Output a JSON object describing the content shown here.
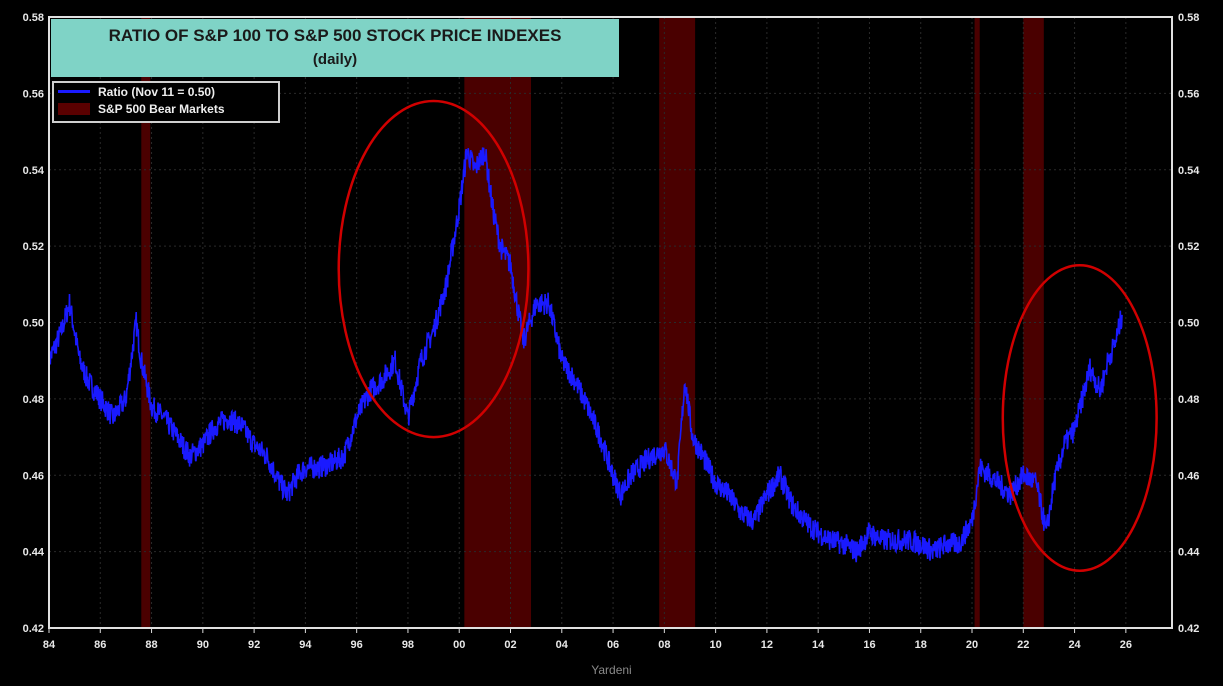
{
  "chart_data": {
    "type": "line",
    "title": "RATIO OF S&P 100 TO S&P 500 STOCK PRICE INDEXES",
    "subtitle": "(daily)",
    "legend": [
      {
        "label": "Ratio (Nov 11 = 0.50)",
        "color": "#1a1aff"
      },
      {
        "label": "S&P 500 Bear Markets",
        "color": "#5a0000"
      }
    ],
    "legend_placement": "top-left",
    "xlim": [
      1984,
      2027.8
    ],
    "ylim": [
      0.42,
      0.58
    ],
    "x_ticks": [
      "84",
      "86",
      "88",
      "90",
      "92",
      "94",
      "96",
      "98",
      "00",
      "02",
      "04",
      "06",
      "08",
      "10",
      "12",
      "14",
      "16",
      "18",
      "20",
      "22",
      "24",
      "26"
    ],
    "y_ticks": [
      "0.42",
      "0.44",
      "0.46",
      "0.48",
      "0.50",
      "0.52",
      "0.54",
      "0.56",
      "0.58"
    ],
    "grid": true,
    "bear_markets": [
      [
        1987.6,
        1987.95
      ],
      [
        2000.2,
        2002.8
      ],
      [
        2007.8,
        2009.2
      ],
      [
        2020.1,
        2020.3
      ],
      [
        2022.0,
        2022.8
      ]
    ],
    "highlight_ellipses": [
      {
        "x_center": 1999.0,
        "y_center": 0.514,
        "x_radius_years": 3.7,
        "y_radius": 0.044
      },
      {
        "x_center": 2024.2,
        "y_center": 0.475,
        "x_radius_years": 3.0,
        "y_radius": 0.04
      }
    ],
    "series": [
      {
        "name": "Ratio (Nov 11 = 0.50)",
        "x": [
          1984.0,
          1984.5,
          1984.8,
          1985.2,
          1985.5,
          1986,
          1986.5,
          1987,
          1987.4,
          1987.6,
          1988,
          1988.5,
          1989,
          1989.5,
          1990,
          1990.5,
          1991,
          1991.5,
          1992,
          1992.5,
          1993,
          1993.3,
          1993.7,
          1994,
          1994.5,
          1995,
          1995.5,
          1996,
          1996.5,
          1997,
          1997.5,
          1998,
          1998.5,
          1999,
          1999.5,
          2000,
          2000.3,
          2000.6,
          2001,
          2001.3,
          2001.6,
          2002,
          2002.5,
          2003,
          2003.5,
          2004,
          2004.5,
          2005,
          2005.5,
          2006,
          2006.3,
          2006.7,
          2007,
          2007.5,
          2008,
          2008.5,
          2008.8,
          2009.1,
          2009.5,
          2010,
          2010.5,
          2011,
          2011.5,
          2012,
          2012.5,
          2013,
          2013.5,
          2014,
          2014.5,
          2015,
          2015.5,
          2016,
          2016.5,
          2017,
          2017.5,
          2018,
          2018.5,
          2019,
          2019.5,
          2020,
          2020.3,
          2020.7,
          2021,
          2021.5,
          2022,
          2022.5,
          2022.9,
          2023.2,
          2023.6,
          2024,
          2024.3,
          2024.6,
          2025,
          2025.3,
          2025.6,
          2025.85
        ],
        "y": [
          0.49,
          0.498,
          0.505,
          0.49,
          0.485,
          0.48,
          0.475,
          0.48,
          0.5,
          0.49,
          0.478,
          0.475,
          0.47,
          0.465,
          0.468,
          0.473,
          0.475,
          0.473,
          0.468,
          0.465,
          0.458,
          0.455,
          0.46,
          0.462,
          0.462,
          0.463,
          0.465,
          0.475,
          0.482,
          0.485,
          0.49,
          0.475,
          0.49,
          0.498,
          0.51,
          0.53,
          0.545,
          0.54,
          0.545,
          0.53,
          0.52,
          0.515,
          0.495,
          0.505,
          0.505,
          0.49,
          0.485,
          0.478,
          0.47,
          0.46,
          0.455,
          0.46,
          0.462,
          0.465,
          0.467,
          0.458,
          0.485,
          0.47,
          0.465,
          0.458,
          0.455,
          0.45,
          0.448,
          0.455,
          0.46,
          0.452,
          0.448,
          0.445,
          0.443,
          0.442,
          0.44,
          0.445,
          0.443,
          0.443,
          0.443,
          0.442,
          0.44,
          0.442,
          0.442,
          0.448,
          0.462,
          0.46,
          0.458,
          0.455,
          0.46,
          0.458,
          0.445,
          0.458,
          0.468,
          0.472,
          0.48,
          0.488,
          0.482,
          0.49,
          0.495,
          0.502
        ]
      }
    ]
  },
  "credit": "Yardeni"
}
